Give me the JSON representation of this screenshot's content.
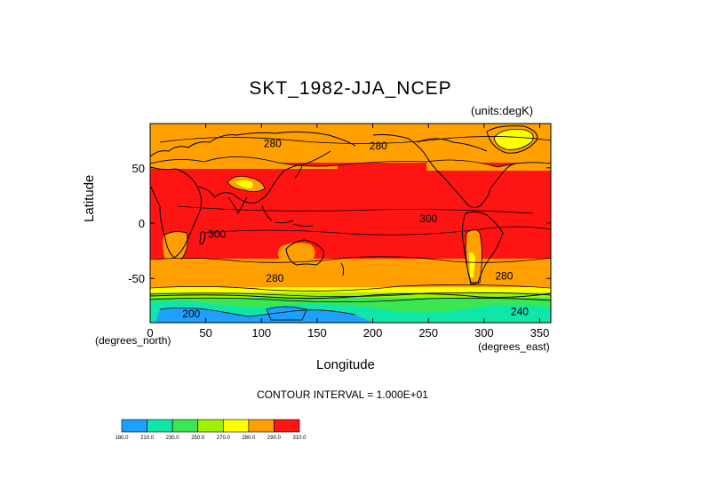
{
  "chart_data": {
    "type": "contour",
    "title": "SKT_1982-JJA_NCEP",
    "units_label": "(units:degK)",
    "xlabel": "Longitude",
    "ylabel": "Latitude",
    "x_unit_label": "(degrees_east)",
    "y_unit_label": "(degrees_north)",
    "x_ticks": [
      0,
      50,
      100,
      150,
      200,
      250,
      300,
      350
    ],
    "y_ticks": [
      50,
      0,
      -50
    ],
    "xlim": [
      0,
      360
    ],
    "ylim": [
      -90,
      90
    ],
    "contour_interval_text": "CONTOUR INTERVAL = 1.000E+01",
    "contour_labels": [
      {
        "text": "280",
        "x": 110,
        "y": 72
      },
      {
        "text": "280",
        "x": 205,
        "y": 70
      },
      {
        "text": "300",
        "x": 250,
        "y": 4
      },
      {
        "text": "300",
        "x": 60,
        "y": -10
      },
      {
        "text": "280",
        "x": 112,
        "y": -50
      },
      {
        "text": "280",
        "x": 318,
        "y": -48
      },
      {
        "text": "200",
        "x": 37,
        "y": -82
      },
      {
        "text": "240",
        "x": 332,
        "y": -80
      }
    ],
    "colorbar": {
      "levels": [
        "180.0",
        "210.0",
        "230.0",
        "250.0",
        "270.0",
        "280.0",
        "290.0",
        "310.0"
      ],
      "colors": [
        "#1ea0ff",
        "#10e6a8",
        "#3ce650",
        "#a0f000",
        "#ffff00",
        "#ffa000",
        "#ff1414"
      ]
    }
  }
}
